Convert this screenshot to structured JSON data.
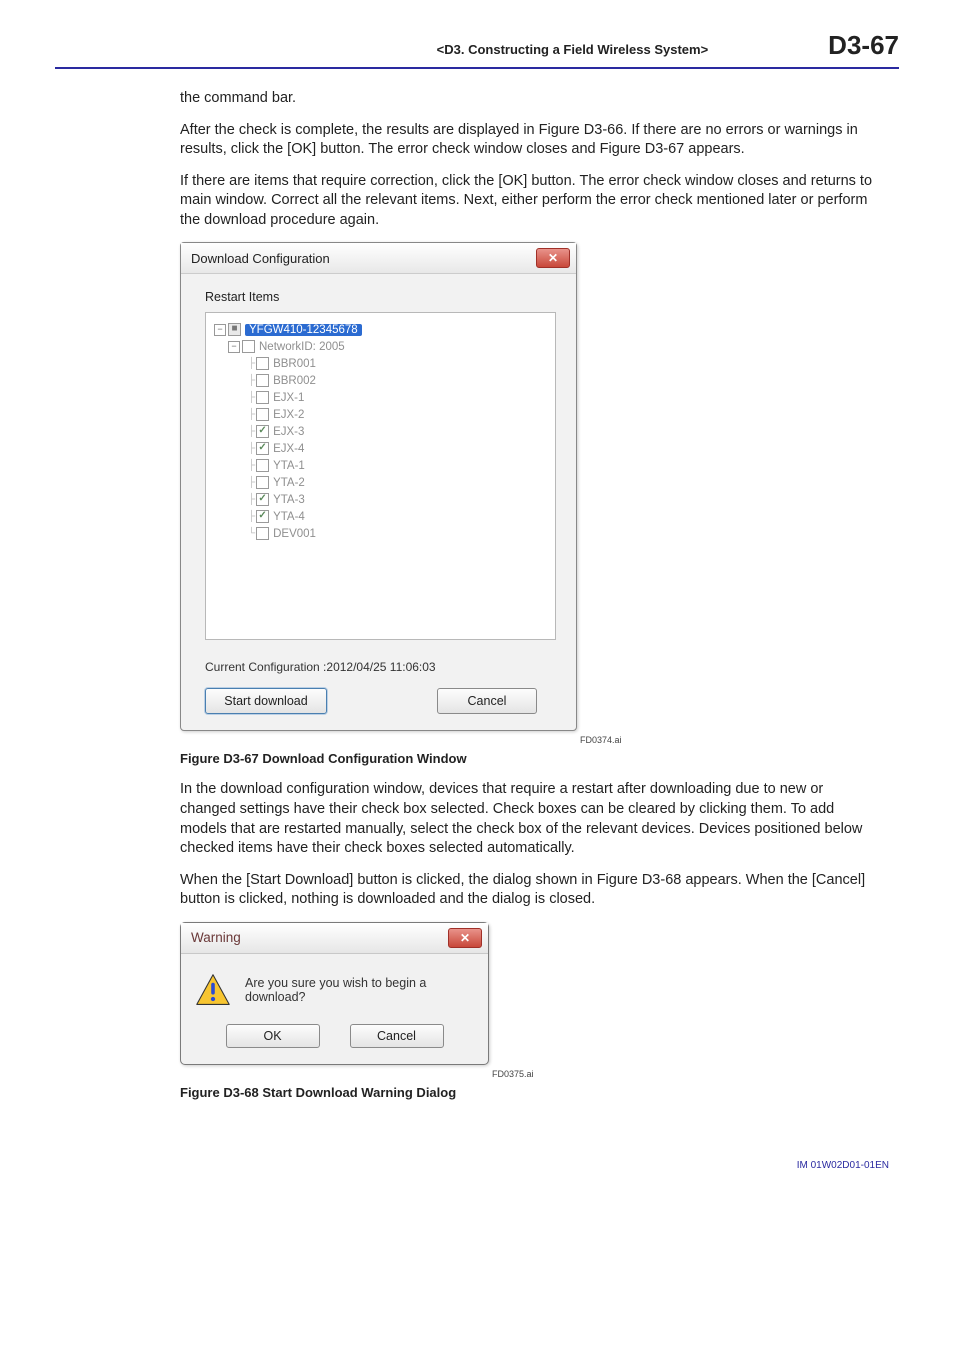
{
  "header": {
    "center": "<D3.  Constructing a Field Wireless System>",
    "right": "D3-67"
  },
  "paragraphs": {
    "p1": "the command bar.",
    "p2": "After the check is complete, the results are displayed in Figure D3-66. If there are no errors or warnings in results, click the [OK] button. The error check window closes and Figure D3-67 appears.",
    "p3": "If there are items that require correction, click the [OK] button. The error check window closes and returns to main window. Correct all the relevant items. Next, either perform the error check mentioned later or perform the download procedure again.",
    "p4": "In the download configuration window, devices that require a restart after downloading due to new or changed settings have their check box selected. Check boxes can be cleared by clicking them. To add models that are restarted manually, select the check box of the relevant devices. Devices positioned below checked items have their check boxes selected automatically.",
    "p5": "When the [Start Download] button is clicked, the dialog shown in Figure D3-68 appears. When the [Cancel] button is clicked, nothing is downloaded and the dialog is closed."
  },
  "download_window": {
    "title": "Download Configuration",
    "section_label": "Restart Items",
    "close_glyph": "✕",
    "tree": {
      "root": {
        "label": "YFGW410-12345678",
        "checked": "partial",
        "expander": "−"
      },
      "network": {
        "label": "NetworkID: 2005",
        "checked": "empty",
        "expander": "−"
      },
      "items": [
        {
          "label": "BBR001",
          "checked": "empty"
        },
        {
          "label": "BBR002",
          "checked": "empty"
        },
        {
          "label": "EJX-1",
          "checked": "empty"
        },
        {
          "label": "EJX-2",
          "checked": "empty"
        },
        {
          "label": "EJX-3",
          "checked": "checked"
        },
        {
          "label": "EJX-4",
          "checked": "checked"
        },
        {
          "label": "YTA-1",
          "checked": "empty"
        },
        {
          "label": "YTA-2",
          "checked": "empty"
        },
        {
          "label": "YTA-3",
          "checked": "checked"
        },
        {
          "label": "YTA-4",
          "checked": "checked"
        },
        {
          "label": "DEV001",
          "checked": "empty"
        }
      ]
    },
    "current_label": "Current Configuration :2012/04/25 11:06:03",
    "start_label": "Start download",
    "cancel_label": "Cancel",
    "fig_ref": "FD0374.ai",
    "caption": "Figure D3-67  Download Configuration Window"
  },
  "warning": {
    "title": "Warning",
    "close_glyph": "✕",
    "text": "Are you sure you wish to begin a download?",
    "ok": "OK",
    "cancel": "Cancel",
    "fig_ref": "FD0375.ai",
    "caption": "Figure D3-68  Start Download Warning Dialog",
    "icon_colors": {
      "triangle_fill": "#f7c531",
      "triangle_stroke": "#333333",
      "bang": "#2a4bd4"
    }
  },
  "footer": "IM 01W02D01-01EN"
}
